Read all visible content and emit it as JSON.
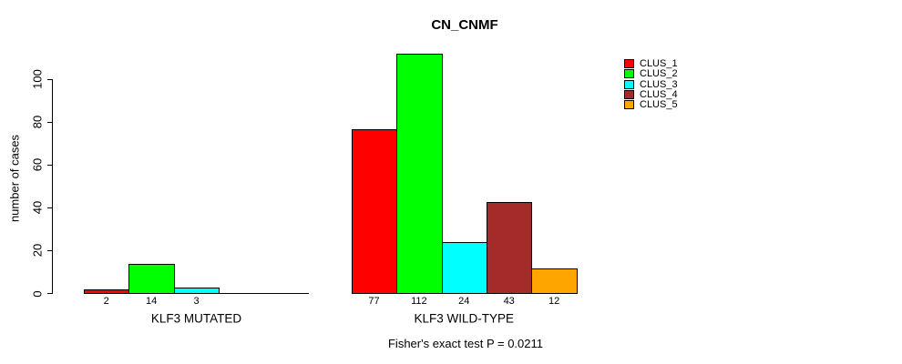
{
  "title": "CN_CNMF",
  "chart_data": {
    "type": "bar",
    "title": "CN_CNMF",
    "xlabel": "",
    "ylabel": "number of cases",
    "categories": [
      "KLF3 MUTATED",
      "KLF3 WILD-TYPE"
    ],
    "series": [
      {
        "name": "CLUS_1",
        "color": "#ff0000",
        "values": [
          2,
          77
        ]
      },
      {
        "name": "CLUS_2",
        "color": "#00ff00",
        "values": [
          14,
          112
        ]
      },
      {
        "name": "CLUS_3",
        "color": "#00ffff",
        "values": [
          3,
          24
        ]
      },
      {
        "name": "CLUS_4",
        "color": "#a52a2a",
        "values": [
          0,
          43
        ]
      },
      {
        "name": "CLUS_5",
        "color": "#ffa500",
        "values": [
          0,
          12
        ]
      }
    ],
    "bar_value_labels": [
      [
        "2",
        "14",
        "3",
        "",
        ""
      ],
      [
        "77",
        "112",
        "24",
        "43",
        "12"
      ]
    ],
    "yticks": [
      0,
      20,
      40,
      60,
      80,
      100
    ],
    "ylim": [
      0,
      115
    ],
    "grid": false,
    "legend_position": "right",
    "annotation": "Fisher's exact test P = 0.0211",
    "axis_color": "#000000",
    "text_color": "#000000",
    "background_color": "#ffffff"
  }
}
